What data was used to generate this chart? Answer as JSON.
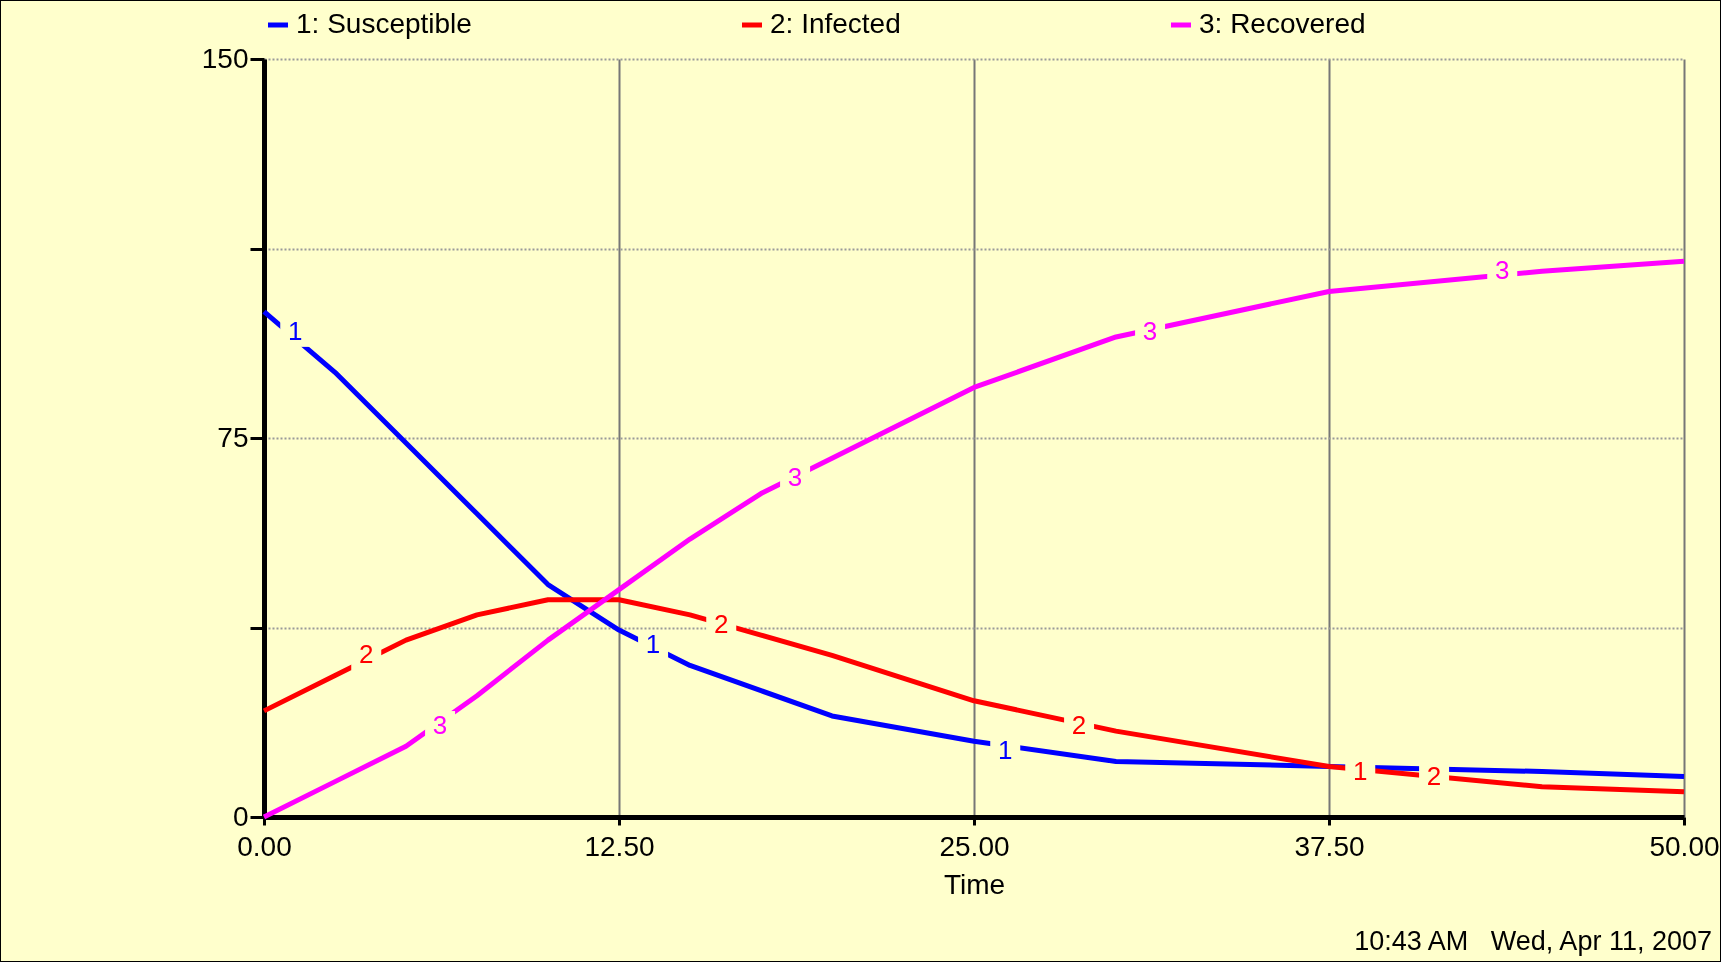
{
  "chart_data": {
    "type": "line",
    "xlabel": "Time",
    "legend": "top",
    "grid": true,
    "line_style": "solid",
    "marker": "none",
    "xlim": [
      0,
      50
    ],
    "ylim": [
      0,
      150
    ],
    "xticks": [
      {
        "value": 0,
        "label": "0.00"
      },
      {
        "value": 12.5,
        "label": "12.50"
      },
      {
        "value": 25,
        "label": "25.00"
      },
      {
        "value": 37.5,
        "label": "37.50"
      },
      {
        "value": 50,
        "label": "50.00"
      }
    ],
    "yticks": [
      0,
      {
        "value": 37.5,
        "label": null
      },
      75,
      {
        "value": 112.5,
        "label": null
      },
      150
    ],
    "x": [
      0,
      2.5,
      5,
      7.5,
      10,
      12.5,
      15,
      17.5,
      20,
      25,
      30,
      37.5,
      45,
      50
    ],
    "series": [
      {
        "name": "1: Susceptible",
        "color": "#0000ff",
        "values": [
          100,
          88,
          74,
          60,
          46,
          37,
          30,
          25,
          20,
          15,
          11,
          10,
          9,
          8
        ]
      },
      {
        "name": "2: Infected",
        "color": "#ff0000",
        "values": [
          21,
          28,
          35,
          40,
          43,
          43,
          40,
          36,
          32,
          23,
          17,
          10,
          6,
          5
        ]
      },
      {
        "name": "3: Recovered",
        "color": "#ff00ff",
        "values": [
          0,
          7,
          14,
          24,
          35,
          45,
          55,
          64,
          71,
          85,
          95,
          104,
          108,
          110
        ]
      }
    ],
    "annotations": [
      {
        "text": "1",
        "x": 1.1,
        "y": 96
      },
      {
        "text": "1",
        "x": 13.7,
        "y": 34
      },
      {
        "text": "1",
        "x": 26.1,
        "y": 13
      },
      {
        "text": "1",
        "x": 38.6,
        "y": 9
      },
      {
        "text": "2",
        "x": 3.6,
        "y": 32
      },
      {
        "text": "2",
        "x": 16.1,
        "y": 38
      },
      {
        "text": "2",
        "x": 28.7,
        "y": 18
      },
      {
        "text": "2",
        "x": 41.2,
        "y": 8
      },
      {
        "text": "3",
        "x": 6.2,
        "y": 18
      },
      {
        "text": "3",
        "x": 18.7,
        "y": 67
      },
      {
        "text": "3",
        "x": 31.2,
        "y": 96
      },
      {
        "text": "3",
        "x": 43.6,
        "y": 108
      },
      "10:43 AM   Wed, Apr 11, 2007"
    ]
  }
}
